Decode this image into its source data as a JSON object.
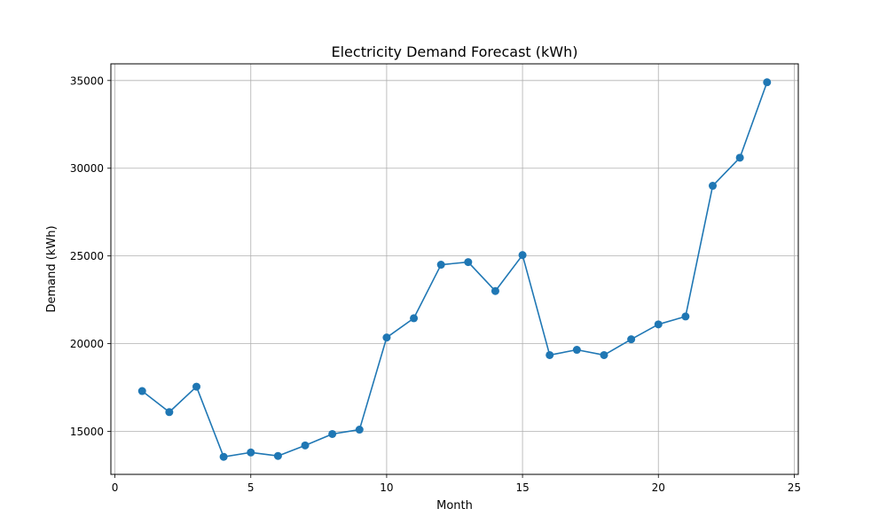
{
  "chart_data": {
    "type": "line",
    "title": "Electricity Demand Forecast (kWh)",
    "xlabel": "Month",
    "ylabel": "Demand (kWh)",
    "xlim": [
      -0.15,
      25.15
    ],
    "ylim": [
      12550,
      35950
    ],
    "x_ticks": [
      0,
      5,
      10,
      15,
      20,
      25
    ],
    "y_ticks": [
      15000,
      20000,
      25000,
      30000,
      35000
    ],
    "grid": true,
    "marker": "circle",
    "color": "#1f77b4",
    "series": [
      {
        "x": [
          1,
          2,
          3,
          4,
          5,
          6,
          7,
          8,
          9,
          10,
          11,
          12,
          13,
          14,
          15,
          16,
          17,
          18,
          19,
          20,
          21,
          22,
          23,
          24
        ],
        "values": [
          17300,
          16100,
          17550,
          13550,
          13800,
          13600,
          14200,
          14850,
          15100,
          20350,
          21450,
          24500,
          24650,
          23000,
          25050,
          19350,
          19650,
          19350,
          20250,
          21100,
          21550,
          29000,
          30600,
          34900
        ]
      }
    ]
  }
}
